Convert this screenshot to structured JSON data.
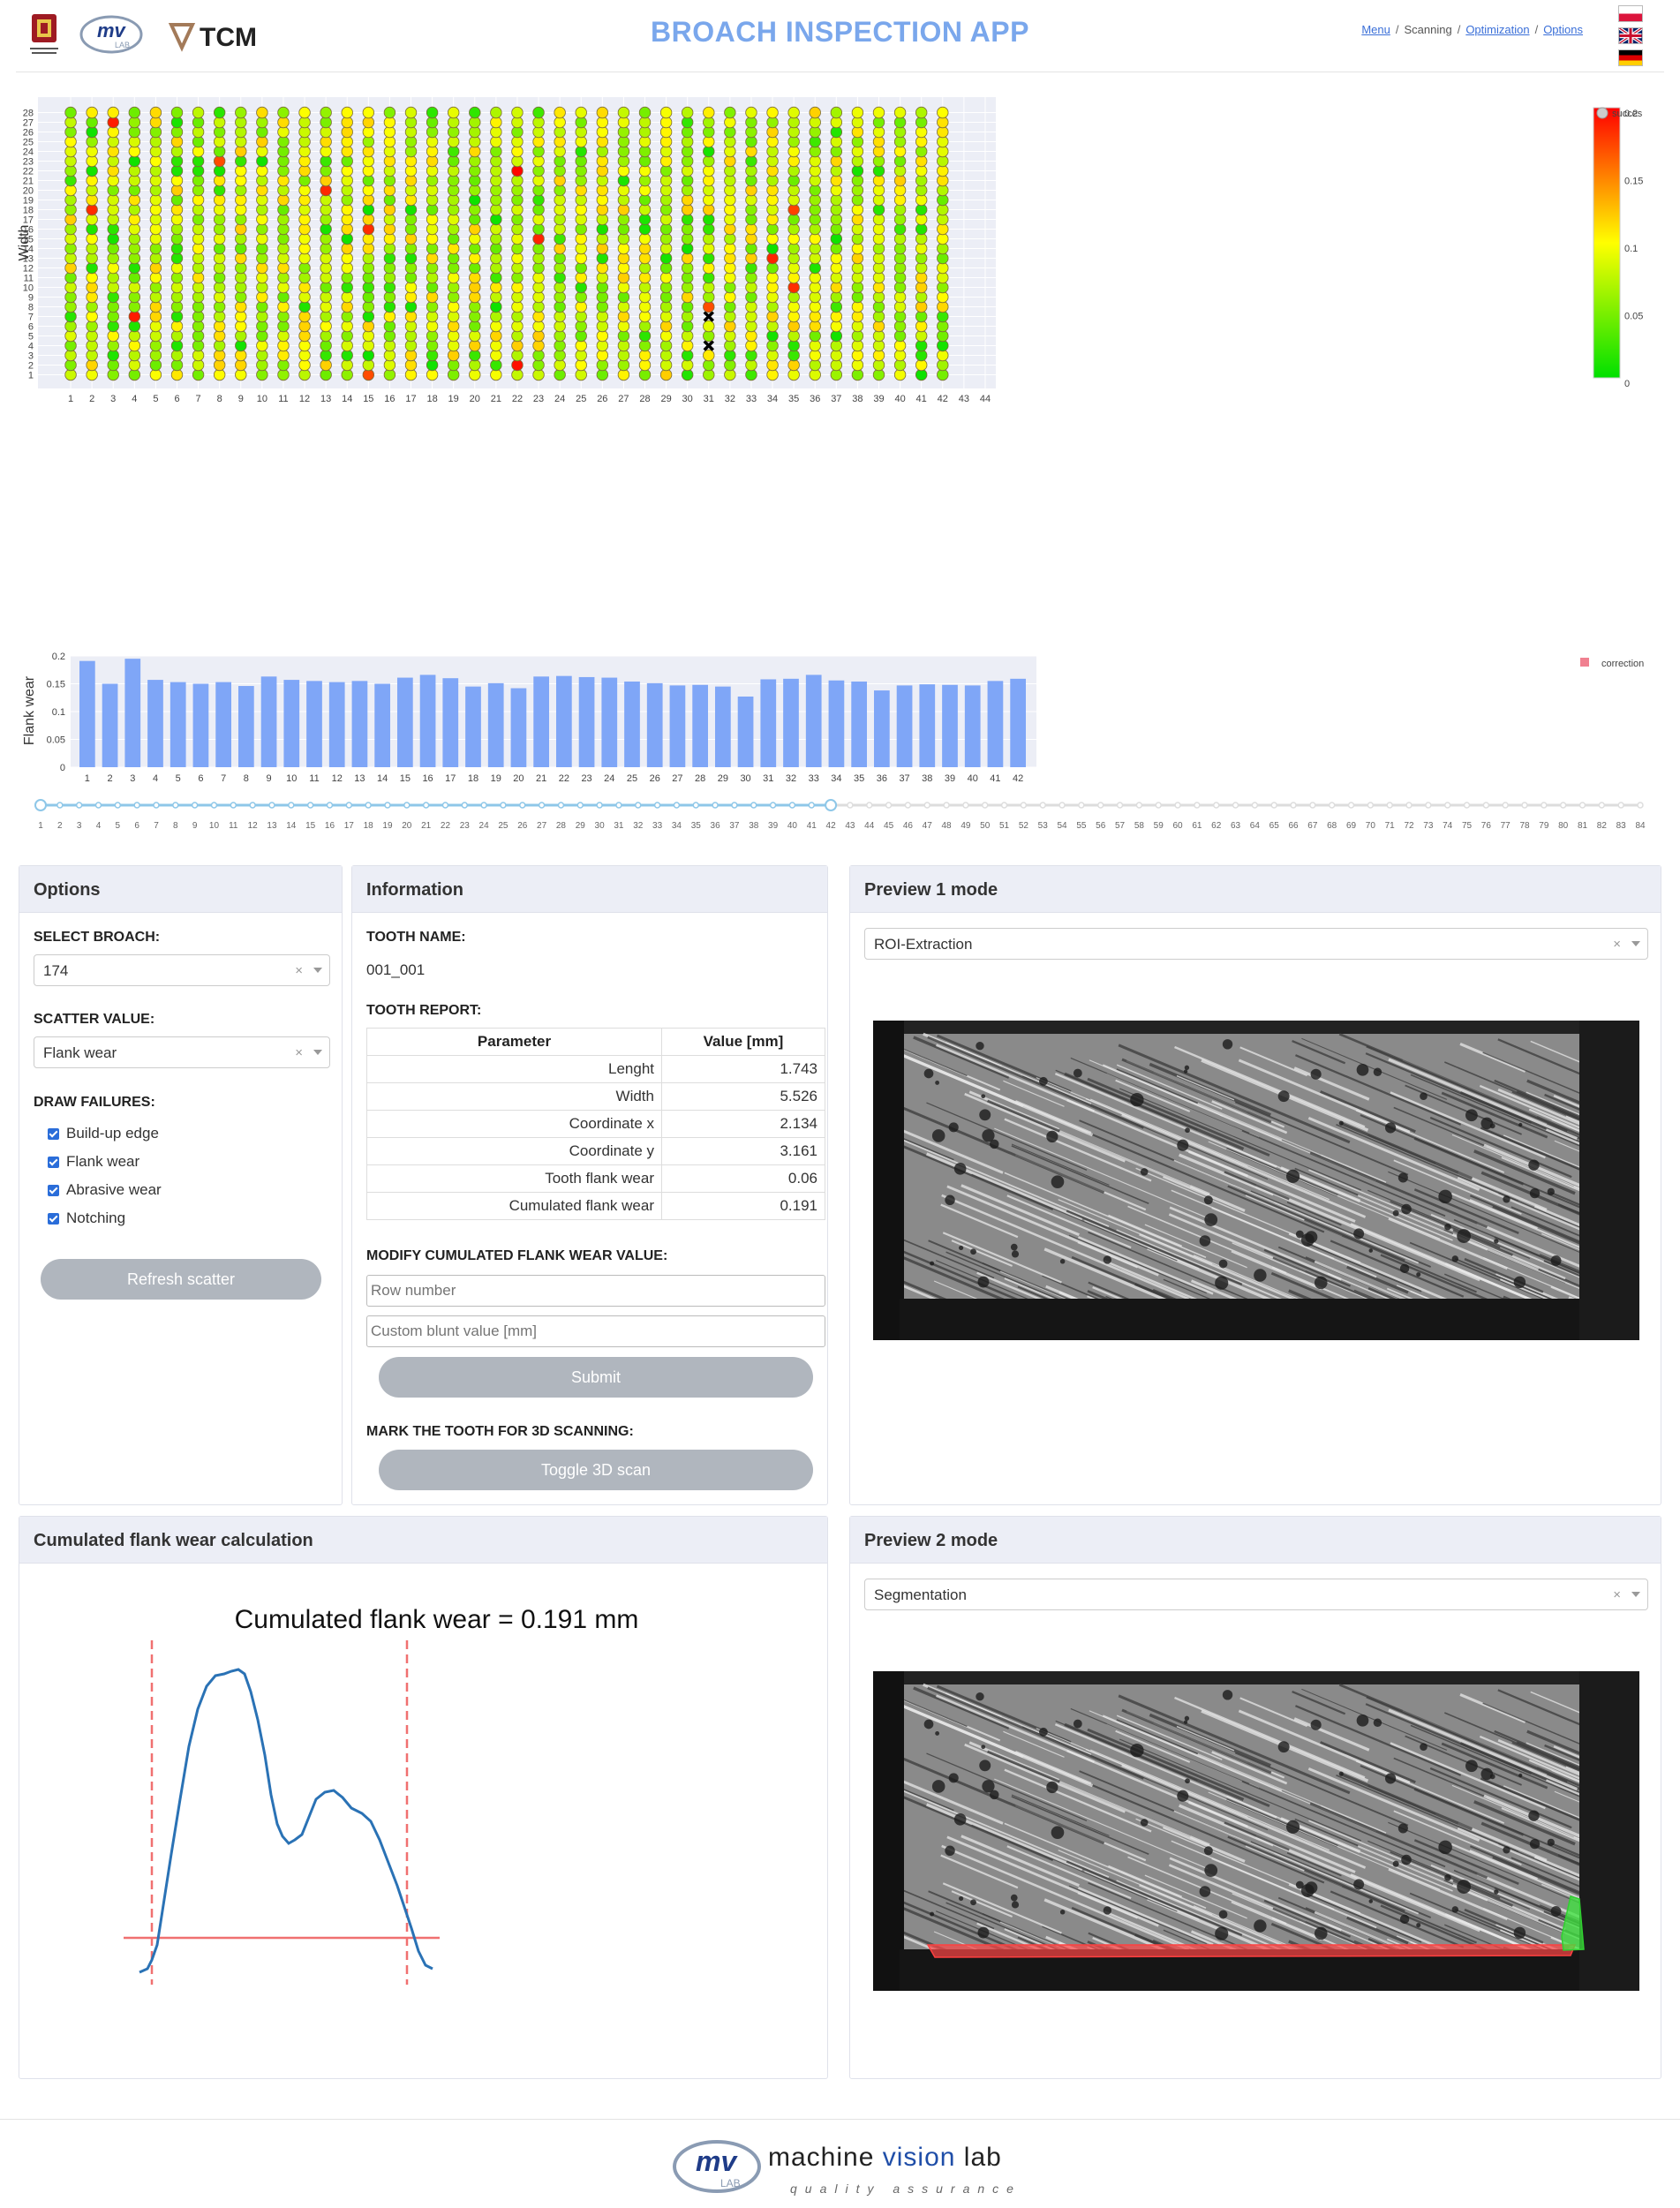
{
  "header": {
    "title": "BROACH INSPECTION APP",
    "logos": [
      "Politechnika Wrocławska",
      "mv lab",
      "TCM"
    ],
    "breadcrumb": [
      {
        "label": "Menu",
        "link": true
      },
      {
        "label": "Scanning",
        "link": false
      },
      {
        "label": "Optimization",
        "link": true
      },
      {
        "label": "Options",
        "link": true
      }
    ],
    "languages": [
      "pl",
      "en",
      "de"
    ]
  },
  "scatter": {
    "ylabel": "Width",
    "rows": 28,
    "cols_data": 42,
    "x_ticks": [
      1,
      2,
      3,
      4,
      5,
      6,
      7,
      8,
      9,
      10,
      11,
      12,
      13,
      14,
      15,
      16,
      17,
      18,
      19,
      20,
      21,
      22,
      23,
      24,
      25,
      26,
      27,
      28,
      29,
      30,
      31,
      32,
      33,
      34,
      35,
      36,
      37,
      38,
      39,
      40,
      41,
      42,
      43,
      44
    ],
    "y_ticks": [
      1,
      2,
      3,
      4,
      5,
      6,
      7,
      8,
      9,
      10,
      11,
      12,
      13,
      14,
      15,
      16,
      17,
      18,
      19,
      20,
      21,
      22,
      23,
      24,
      25,
      26,
      27,
      28
    ],
    "colorscale": {
      "min": 0,
      "max": 0.2,
      "ticks": [
        0,
        0.05,
        0.1,
        0.15,
        0.2
      ],
      "colors": [
        "#00e000",
        "#ffff00",
        "#ff0000"
      ]
    },
    "legend": "succes",
    "failures": [
      {
        "x": 31,
        "y": 7
      },
      {
        "x": 31,
        "y": 4
      }
    ]
  },
  "chart_data": [
    {
      "type": "scatter",
      "title": "",
      "ylabel": "Width",
      "xlim": [
        0.5,
        44.5
      ],
      "ylim": [
        0.5,
        28.5
      ],
      "color_variable": "flank wear",
      "note": "heatmap-like grid of teeth 1-42 x rows 1-28 colored by flank wear"
    },
    {
      "type": "bar",
      "ylabel": "Flank wear",
      "ylim": [
        0,
        0.2
      ],
      "yticks": [
        0,
        0.05,
        0.1,
        0.15,
        0.2
      ],
      "legend": "correction",
      "categories": [
        1,
        2,
        3,
        4,
        5,
        6,
        7,
        8,
        9,
        10,
        11,
        12,
        13,
        14,
        15,
        16,
        17,
        18,
        19,
        20,
        21,
        22,
        23,
        24,
        25,
        26,
        27,
        28,
        29,
        30,
        31,
        32,
        33,
        34,
        35,
        36,
        37,
        38,
        39,
        40,
        41,
        42
      ],
      "values": [
        0.191,
        0.15,
        0.195,
        0.157,
        0.153,
        0.15,
        0.153,
        0.146,
        0.163,
        0.157,
        0.155,
        0.153,
        0.155,
        0.15,
        0.161,
        0.166,
        0.16,
        0.145,
        0.151,
        0.142,
        0.163,
        0.164,
        0.162,
        0.161,
        0.154,
        0.151,
        0.147,
        0.148,
        0.145,
        0.127,
        0.158,
        0.159,
        0.166,
        0.156,
        0.154,
        0.138,
        0.147,
        0.149,
        0.148,
        0.147,
        0.155,
        0.159
      ]
    }
  ],
  "slider": {
    "min": 1,
    "max": 84,
    "selected": [
      1,
      42
    ]
  },
  "options_panel": {
    "title": "Options",
    "select_broach_label": "SELECT BROACH:",
    "broach_value": "174",
    "scatter_value_label": "SCATTER VALUE:",
    "scatter_value": "Flank wear",
    "draw_failures_label": "DRAW FAILURES:",
    "failures": [
      "Build-up edge",
      "Flank wear",
      "Abrasive wear",
      "Notching"
    ],
    "refresh_button": "Refresh scatter",
    "clear_x": "×"
  },
  "info_panel": {
    "title": "Information",
    "tooth_name_label": "TOOTH NAME:",
    "tooth_name": "001_001",
    "tooth_report_label": "TOOTH REPORT:",
    "report_headers": [
      "Parameter",
      "Value [mm]"
    ],
    "report_rows": [
      {
        "param": "Lenght",
        "value": "1.743"
      },
      {
        "param": "Width",
        "value": "5.526"
      },
      {
        "param": "Coordinate x",
        "value": "2.134"
      },
      {
        "param": "Coordinate y",
        "value": "3.161"
      },
      {
        "param": "Tooth flank wear",
        "value": "0.06"
      },
      {
        "param": "Cumulated flank wear",
        "value": "0.191"
      }
    ],
    "modify_label": "MODIFY CUMULATED FLANK WEAR VALUE:",
    "row_number_placeholder": "Row number",
    "custom_blunt_placeholder": "Custom blunt value [mm]",
    "submit_button": "Submit",
    "mark_label": "MARK THE TOOTH FOR 3D SCANNING:",
    "toggle_button": "Toggle 3D scan"
  },
  "preview1": {
    "title": "Preview 1 mode",
    "mode": "ROI-Extraction"
  },
  "preview2": {
    "title": "Preview 2 mode",
    "mode": "Segmentation"
  },
  "calc_panel": {
    "title": "Cumulated flank wear calculation",
    "plot_title": "Cumulated flank wear = 0.191 mm"
  },
  "footer": {
    "brand_a": "machine ",
    "brand_b": "vision",
    "brand_c": " lab",
    "tagline": "quality assurance"
  },
  "colors": {
    "accent": "#7aa7ec",
    "bar": "#7fa6f7",
    "button": "#b0b6be",
    "panel_head": "#eceef6",
    "threshold": "#f07070",
    "curve": "#2a72b5"
  }
}
